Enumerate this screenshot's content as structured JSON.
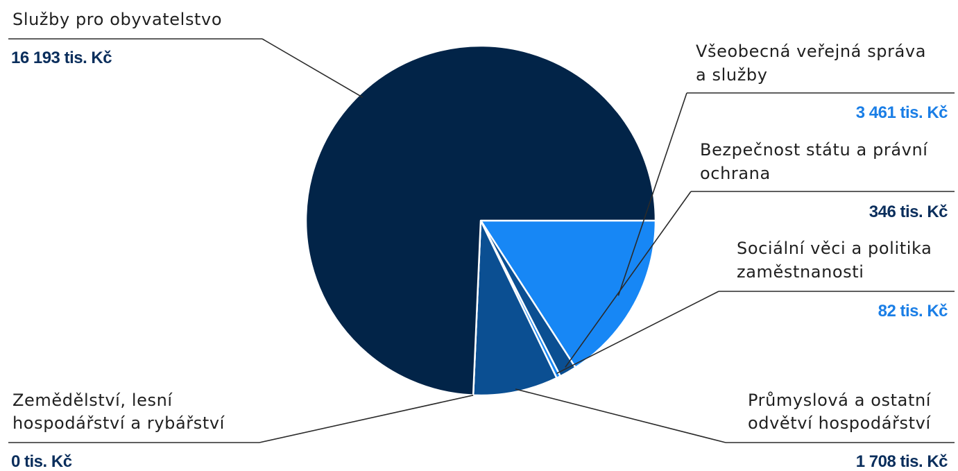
{
  "colors": {
    "navy": "#022448",
    "mid_blue": "#0b4f92",
    "bright_blue": "#1787f5",
    "value_dark": "#0a2e5c",
    "value_light": "#1a7ee6"
  },
  "chart_data": {
    "type": "pie",
    "unit": "tis. Kč",
    "slices": [
      {
        "name": "Služby pro obyvatelstvo",
        "name_lines": [
          "Služby pro obyvatelstvo"
        ],
        "value": 16193,
        "value_label": "16 193 tis. Kč",
        "color": "#022448"
      },
      {
        "name": "Všeobecná veřejná správa a služby",
        "name_lines": [
          "Všeobecná veřejná správa",
          "a služby"
        ],
        "value": 3461,
        "value_label": "3 461 tis. Kč",
        "color": "#1787f5"
      },
      {
        "name": "Bezpečnost státu a právní ochrana",
        "name_lines": [
          "Bezpečnost státu a právní",
          "ochrana"
        ],
        "value": 346,
        "value_label": "346 tis. Kč",
        "color": "#0b4f92"
      },
      {
        "name": "Sociální věci a politika zaměstnanosti",
        "name_lines": [
          "Sociální věci a politika",
          "zaměstnanosti"
        ],
        "value": 82,
        "value_label": "82 tis. Kč",
        "color": "#1787f5"
      },
      {
        "name": "Průmyslová a ostatní odvětví hospodářství",
        "name_lines": [
          "Průmyslová a ostatní",
          "odvětví hospodářství"
        ],
        "value": 1708,
        "value_label": "1 708 tis. Kč",
        "color": "#0b4f92"
      },
      {
        "name": "Zemědělství, lesní hospodářství a rybářství",
        "name_lines": [
          "Zemědělství, lesní",
          "hospodářství a rybářství"
        ],
        "value": 0,
        "value_label": "0 tis. Kč",
        "color": "#0b4f92"
      }
    ]
  }
}
